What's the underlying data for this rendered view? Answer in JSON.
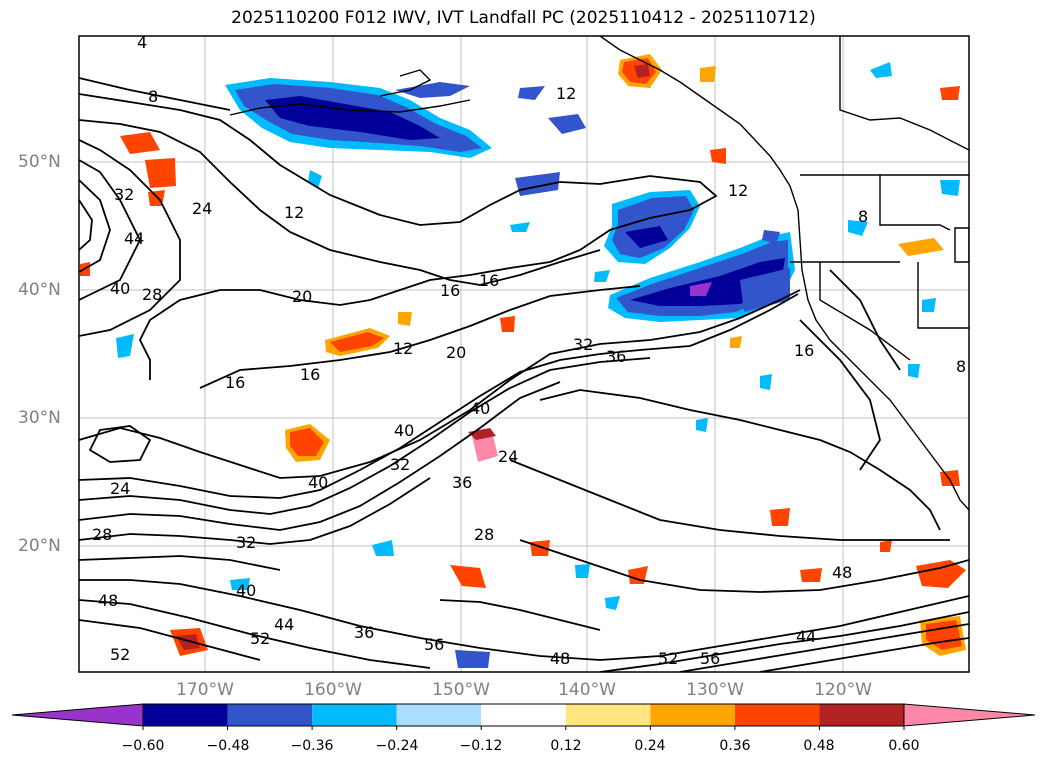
{
  "title": "2025110200 F012 IWV, IVT Landfall PC (2025110412 - 2025110712)",
  "lat_labels": [
    "50°N",
    "40°N",
    "30°N",
    "20°N"
  ],
  "lon_labels": [
    "170°W",
    "160°W",
    "150°W",
    "140°W",
    "130°W",
    "120°W"
  ],
  "colorbar": {
    "colors": [
      "#9933cc",
      "#000099",
      "#3355cc",
      "#00bbff",
      "#aaddff",
      "#ffffff",
      "#ffe680",
      "#ffa500",
      "#ff4400",
      "#b22222",
      "#ff88aa"
    ],
    "tick_labels": [
      "−0.60",
      "−0.48",
      "−0.36",
      "−0.24",
      "−0.12",
      "0.12",
      "0.24",
      "0.36",
      "0.48",
      "0.60"
    ]
  },
  "contour_labels": [
    "4",
    "8",
    "12",
    "12",
    "12",
    "12",
    "16",
    "16",
    "16",
    "16",
    "16",
    "20",
    "20",
    "24",
    "24",
    "24",
    "28",
    "28",
    "28",
    "32",
    "32",
    "32",
    "32",
    "36",
    "36",
    "36",
    "40",
    "40",
    "40",
    "40",
    "40",
    "44",
    "44",
    "44",
    "48",
    "48",
    "48",
    "52",
    "52",
    "52",
    "56",
    "56",
    "8",
    "8"
  ]
}
